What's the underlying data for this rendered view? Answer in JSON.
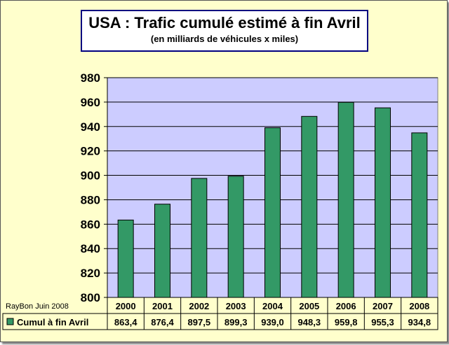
{
  "title": "USA : Trafic cumulé estimé à fin Avril",
  "subtitle": "(en milliards de véhicules x miles)",
  "credit": "RayBon Juin 2008",
  "colors": {
    "plot_background": "#ccccff",
    "bar": "#339966",
    "frame_background": "#ffffcc",
    "title_border": "#000080"
  },
  "chart_data": {
    "type": "bar",
    "title": "USA : Trafic cumulé estimé à fin Avril",
    "subtitle": "(en milliards de véhicules x miles)",
    "categories": [
      "2000",
      "2001",
      "2002",
      "2003",
      "2004",
      "2005",
      "2006",
      "2007",
      "2008"
    ],
    "series": [
      {
        "name": "Cumul à fin Avril",
        "values": [
          863.4,
          876.4,
          897.5,
          899.3,
          939.0,
          948.3,
          959.8,
          955.3,
          934.8
        ],
        "labels": [
          "863,4",
          "876,4",
          "897,5",
          "899,3",
          "939,0",
          "948,3",
          "959,8",
          "955,3",
          "934,8"
        ]
      }
    ],
    "ylim": [
      800,
      980
    ],
    "yticks": [
      800,
      820,
      840,
      860,
      880,
      900,
      920,
      940,
      960,
      980
    ],
    "grid": true,
    "legend": "data-table"
  }
}
